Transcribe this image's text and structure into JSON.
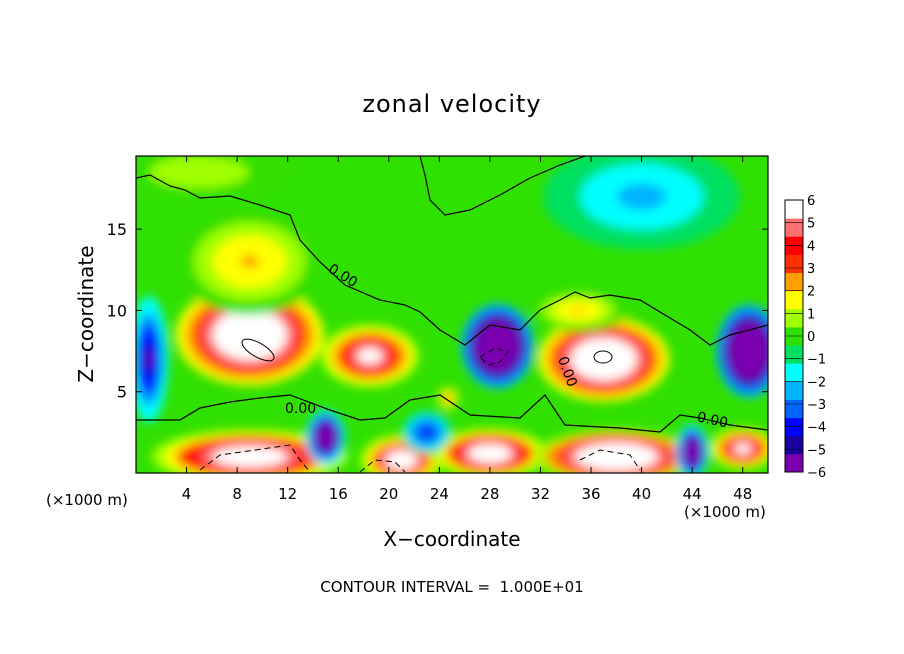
{
  "chart_data": {
    "type": "heatmap",
    "title": "zonal velocity",
    "xlabel": "X−coordinate",
    "ylabel": "Z−coordinate",
    "x_unit_left": "(×1000 m)",
    "x_unit_right": "(×1000 m)",
    "footer": "CONTOUR INTERVAL =  1.000E+01",
    "xlim": [
      0,
      50
    ],
    "ylim": [
      0,
      19.5
    ],
    "x_ticks": [
      "4",
      "8",
      "12",
      "16",
      "20",
      "24",
      "28",
      "32",
      "36",
      "40",
      "44",
      "48"
    ],
    "y_ticks": [
      "5",
      "10",
      "15"
    ],
    "colorbar": {
      "min": -6,
      "max": 6,
      "ticks": [
        "6",
        "5",
        "4",
        "3",
        "2",
        "1",
        "0",
        "−1",
        "−2",
        "−3",
        "−4",
        "−5",
        "−6"
      ],
      "colors": [
        "#7a00b0",
        "#1a00a0",
        "#0000ff",
        "#0064ff",
        "#00b4ff",
        "#00ffff",
        "#00e060",
        "#30e000",
        "#a0ff00",
        "#ffff00",
        "#ffa000",
        "#ff3000",
        "#ff0000",
        "#ff7070",
        "#ffffff"
      ],
      "below_color": "#ffffff",
      "above_color": "#ffffff"
    },
    "contour_labels": [
      "0.00",
      "0.00",
      "0.00",
      "0.00"
    ],
    "features": [
      {
        "x": 9,
        "z": 8.5,
        "value": 12,
        "sx": 4.5,
        "sy": 2.4,
        "name": "jet-core-left"
      },
      {
        "x": 9,
        "z": 13,
        "value": 3,
        "sx": 4.5,
        "sy": 2.5,
        "name": "jet-upper-left"
      },
      {
        "x": 18.5,
        "z": 7.2,
        "value": 8.5,
        "sx": 3.0,
        "sy": 1.5,
        "name": "jet-core-mid"
      },
      {
        "x": 24.7,
        "z": 4.6,
        "value": 4,
        "sx": 0.7,
        "sy": 0.6,
        "name": "small-max"
      },
      {
        "x": 37,
        "z": 7,
        "value": 12,
        "sx": 4.0,
        "sy": 2.0,
        "name": "jet-core-right"
      },
      {
        "x": 35,
        "z": 10,
        "value": 3,
        "sx": 3.0,
        "sy": 1.0,
        "name": "jet-upper-right"
      },
      {
        "x": 28.6,
        "z": 7.8,
        "value": -12,
        "sx": 2.2,
        "sy": 2.0,
        "name": "reverse-core-mid"
      },
      {
        "x": 48.5,
        "z": 7.5,
        "value": -12,
        "sx": 2.0,
        "sy": 2.2,
        "name": "reverse-core-right"
      },
      {
        "x": 1,
        "z": 7,
        "value": -6,
        "sx": 1.2,
        "sy": 3.0,
        "name": "reverse-left-edge"
      },
      {
        "x": 9,
        "z": 1,
        "value": 10,
        "sx": 6.0,
        "sy": 1.3,
        "name": "surface-jet-left"
      },
      {
        "x": 21,
        "z": 0.8,
        "value": 9,
        "sx": 2.5,
        "sy": 1.2,
        "name": "surface-jet-mid"
      },
      {
        "x": 28,
        "z": 1.2,
        "value": 10,
        "sx": 3.5,
        "sy": 1.2,
        "name": "surface-jet-center"
      },
      {
        "x": 38,
        "z": 1,
        "value": 11,
        "sx": 5.0,
        "sy": 1.3,
        "name": "surface-jet-right"
      },
      {
        "x": 48,
        "z": 1.5,
        "value": 8,
        "sx": 2.0,
        "sy": 1.0,
        "name": "surface-jet-far-right"
      },
      {
        "x": 15,
        "z": 2.2,
        "value": -10,
        "sx": 1.2,
        "sy": 1.3,
        "name": "reverse-low-1"
      },
      {
        "x": 23,
        "z": 2.5,
        "value": -5,
        "sx": 1.5,
        "sy": 1.0,
        "name": "reverse-low-2"
      },
      {
        "x": 44,
        "z": 1.3,
        "value": -10,
        "sx": 1.0,
        "sy": 1.3,
        "name": "reverse-low-3"
      },
      {
        "x": 40,
        "z": 17,
        "value": -2.2,
        "sx": 6.0,
        "sy": 2.5,
        "name": "upper-negative"
      },
      {
        "x": 5,
        "z": 18.5,
        "value": 1.5,
        "sx": 6.0,
        "sy": 1.5,
        "name": "top-left-positive"
      }
    ]
  }
}
